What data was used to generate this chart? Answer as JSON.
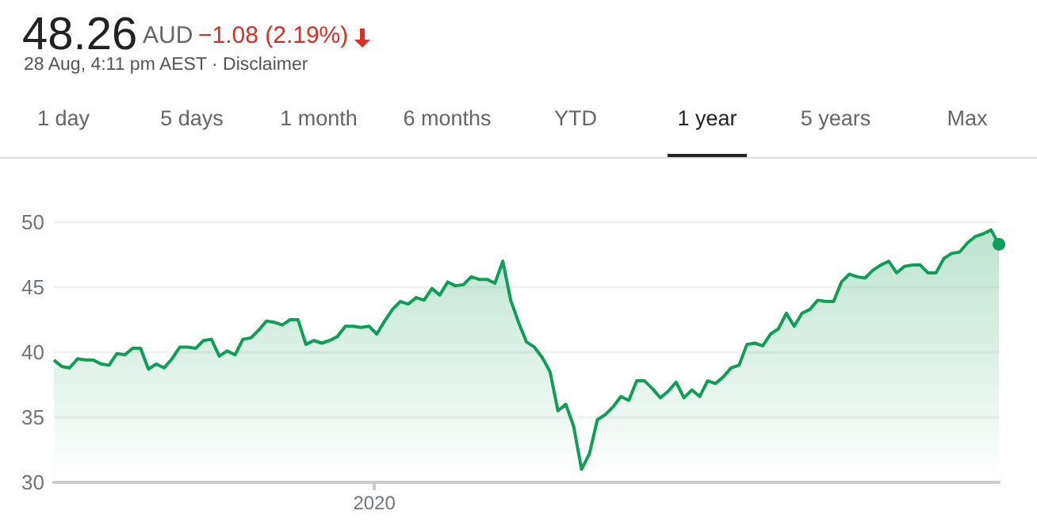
{
  "chart_data": {
    "type": "area",
    "title": "48.26",
    "subtitle": "28 Aug, 4:11 pm AEST · Disclaimer",
    "annotations": [
      "AUD",
      "−1.08 (2.19%)",
      "1 day",
      "5 days",
      "1 month",
      "6 months",
      "YTD",
      "1 year",
      "5 years",
      "Max",
      "2020"
    ],
    "categories": [
      null,
      null,
      null,
      null,
      null,
      null,
      null,
      null,
      null,
      null,
      null,
      null,
      null,
      null,
      null,
      null,
      null,
      null,
      null,
      null,
      null,
      null,
      null,
      null,
      null,
      null,
      null,
      null,
      null,
      null,
      null,
      null,
      null,
      null,
      null,
      null,
      null,
      null,
      null,
      null,
      null,
      null,
      null,
      null,
      null,
      null,
      null,
      null,
      null,
      null,
      null,
      null,
      null,
      null,
      null,
      null,
      null,
      null,
      null,
      null,
      null,
      null,
      null,
      null,
      null,
      null,
      null,
      null,
      null,
      null,
      null,
      null,
      null,
      null,
      null,
      null,
      null,
      null,
      null,
      null,
      null,
      null,
      null,
      null,
      null,
      null,
      null,
      null,
      null,
      null,
      null,
      null,
      null,
      null,
      null,
      null,
      null,
      null,
      null,
      null,
      null,
      null,
      null,
      null,
      null,
      null,
      null,
      null,
      null,
      null,
      null,
      null,
      null,
      null,
      null,
      null,
      null,
      null,
      null,
      null,
      null
    ],
    "series": [
      {
        "color": "#0f9d58",
        "values": [
          39.4,
          38.9,
          38.8,
          39.5,
          39.4,
          39.4,
          39.1,
          39.0,
          39.9,
          39.8,
          40.3,
          40.3,
          38.7,
          39.1,
          38.8,
          39.5,
          40.4,
          40.4,
          40.3,
          40.9,
          41.0,
          39.7,
          40.1,
          39.8,
          41.0,
          41.1,
          41.7,
          42.4,
          42.3,
          42.1,
          42.5,
          42.5,
          40.6,
          40.9,
          40.7,
          40.9,
          41.2,
          42.0,
          42.0,
          41.9,
          42.0,
          41.4,
          42.4,
          43.3,
          43.9,
          43.7,
          44.2,
          44.0,
          44.9,
          44.4,
          45.4,
          45.1,
          45.2,
          45.8,
          45.6,
          45.6,
          45.3,
          47.0,
          44.0,
          42.3,
          40.8,
          40.4,
          39.6,
          38.5,
          35.5,
          36.0,
          34.3,
          31.0,
          32.2,
          34.8,
          35.2,
          35.8,
          36.6,
          36.3,
          37.8,
          37.8,
          37.2,
          36.5,
          37.0,
          37.7,
          36.5,
          37.1,
          36.6,
          37.8,
          37.6,
          38.1,
          38.8,
          39.0,
          40.6,
          40.7,
          40.5,
          41.4,
          41.8,
          43.0,
          42.0,
          43.0,
          43.3,
          44.0,
          43.9,
          43.9,
          45.4,
          46.0,
          45.8,
          45.7,
          46.3,
          46.7,
          47.0,
          46.1,
          46.6,
          46.7,
          46.7,
          46.1,
          46.1,
          47.2,
          47.6,
          47.7,
          48.4,
          48.9,
          49.1,
          49.4,
          48.3
        ]
      }
    ],
    "ylim": [
      30,
      50
    ],
    "yticks": [
      30,
      35,
      40,
      45,
      50
    ],
    "grid": "y"
  }
}
